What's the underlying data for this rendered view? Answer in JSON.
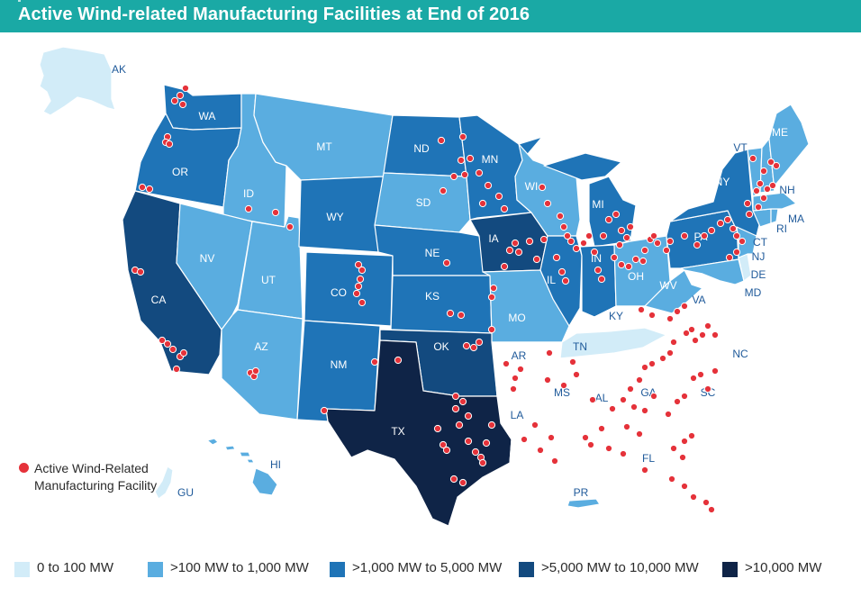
{
  "header": {
    "title": "Active Wind-related Manufacturing Facilities at End of 2016"
  },
  "colors": {
    "header_bg": "#1aa9a5",
    "facility_dot": "#e5323a",
    "outline_only": "#ffffff",
    "tier_0_100": "#d2ecf8",
    "tier_100_1000": "#5aade0",
    "tier_1000_5000": "#1f74b7",
    "tier_5000_10000": "#134a7f",
    "tier_10000_plus": "#0f2447"
  },
  "map": {
    "states": {
      "AK": {
        "label": "AK",
        "tier": "tier_0_100"
      },
      "HI": {
        "label": "HI",
        "tier": "tier_100_1000"
      },
      "GU": {
        "label": "GU",
        "tier": "tier_0_100"
      },
      "PR": {
        "label": "PR",
        "tier": "tier_100_1000"
      },
      "WA": {
        "label": "WA",
        "tier": "tier_1000_5000"
      },
      "OR": {
        "label": "OR",
        "tier": "tier_1000_5000"
      },
      "CA": {
        "label": "CA",
        "tier": "tier_5000_10000"
      },
      "ID": {
        "label": "ID",
        "tier": "tier_100_1000"
      },
      "NV": {
        "label": "NV",
        "tier": "tier_100_1000"
      },
      "UT": {
        "label": "UT",
        "tier": "tier_100_1000"
      },
      "AZ": {
        "label": "AZ",
        "tier": "tier_100_1000"
      },
      "MT": {
        "label": "MT",
        "tier": "tier_100_1000"
      },
      "WY": {
        "label": "WY",
        "tier": "tier_1000_5000"
      },
      "CO": {
        "label": "CO",
        "tier": "tier_1000_5000"
      },
      "NM": {
        "label": "NM",
        "tier": "tier_1000_5000"
      },
      "ND": {
        "label": "ND",
        "tier": "tier_1000_5000"
      },
      "SD": {
        "label": "SD",
        "tier": "tier_100_1000"
      },
      "NE": {
        "label": "NE",
        "tier": "tier_1000_5000"
      },
      "KS": {
        "label": "KS",
        "tier": "tier_1000_5000"
      },
      "OK": {
        "label": "OK",
        "tier": "tier_5000_10000"
      },
      "TX": {
        "label": "TX",
        "tier": "tier_10000_plus"
      },
      "MN": {
        "label": "MN",
        "tier": "tier_1000_5000"
      },
      "IA": {
        "label": "IA",
        "tier": "tier_5000_10000"
      },
      "MO": {
        "label": "MO",
        "tier": "tier_100_1000"
      },
      "AR": {
        "label": "AR",
        "tier": "outline_only"
      },
      "LA": {
        "label": "LA",
        "tier": "outline_only"
      },
      "WI": {
        "label": "WI",
        "tier": "tier_100_1000"
      },
      "IL": {
        "label": "IL",
        "tier": "tier_1000_5000"
      },
      "MI": {
        "label": "MI",
        "tier": "tier_1000_5000"
      },
      "IN": {
        "label": "IN",
        "tier": "tier_1000_5000"
      },
      "OH": {
        "label": "OH",
        "tier": "tier_100_1000"
      },
      "KY": {
        "label": "KY",
        "tier": "outline_only"
      },
      "TN": {
        "label": "TN",
        "tier": "tier_0_100"
      },
      "MS": {
        "label": "MS",
        "tier": "outline_only"
      },
      "AL": {
        "label": "AL",
        "tier": "outline_only"
      },
      "GA": {
        "label": "GA",
        "tier": "outline_only"
      },
      "FL": {
        "label": "FL",
        "tier": "outline_only"
      },
      "SC": {
        "label": "SC",
        "tier": "outline_only"
      },
      "NC": {
        "label": "NC",
        "tier": "outline_only"
      },
      "VA": {
        "label": "VA",
        "tier": "outline_only"
      },
      "WV": {
        "label": "WV",
        "tier": "tier_100_1000"
      },
      "PA": {
        "label": "PA",
        "tier": "tier_1000_5000"
      },
      "NY": {
        "label": "NY",
        "tier": "tier_1000_5000"
      },
      "VT": {
        "label": "VT",
        "tier": "tier_100_1000"
      },
      "NH": {
        "label": "NH",
        "tier": "tier_100_1000"
      },
      "ME": {
        "label": "ME",
        "tier": "tier_100_1000"
      },
      "MA": {
        "label": "MA",
        "tier": "tier_100_1000"
      },
      "RI": {
        "label": "RI",
        "tier": "tier_100_1000"
      },
      "CT": {
        "label": "CT",
        "tier": "tier_100_1000"
      },
      "NJ": {
        "label": "NJ",
        "tier": "tier_100_1000"
      },
      "DE": {
        "label": "DE",
        "tier": "tier_0_100"
      },
      "MD": {
        "label": "MD",
        "tier": "tier_100_1000"
      }
    }
  },
  "legend": {
    "facility_label": "Active Wind-Related Manufacturing Facility",
    "tiers": [
      {
        "key": "tier_0_100",
        "label": "0 to 100 MW"
      },
      {
        "key": "tier_100_1000",
        "label": ">100 MW to 1,000 MW"
      },
      {
        "key": "tier_1000_5000",
        "label": ">1,000 MW to 5,000 MW"
      },
      {
        "key": "tier_5000_10000",
        "label": ">5,000 MW to 10,000 MW"
      },
      {
        "key": "tier_10000_plus",
        "label": ">10,000 MW"
      }
    ]
  }
}
